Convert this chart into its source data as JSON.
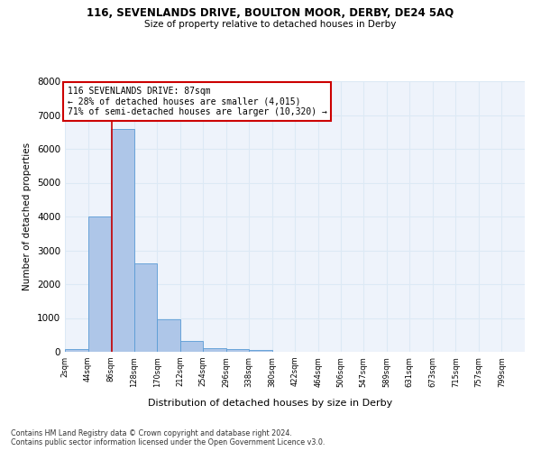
{
  "title": "116, SEVENLANDS DRIVE, BOULTON MOOR, DERBY, DE24 5AQ",
  "subtitle": "Size of property relative to detached houses in Derby",
  "xlabel": "Distribution of detached houses by size in Derby",
  "ylabel": "Number of detached properties",
  "footer_line1": "Contains HM Land Registry data © Crown copyright and database right 2024.",
  "footer_line2": "Contains public sector information licensed under the Open Government Licence v3.0.",
  "bar_edges": [
    2,
    44,
    86,
    128,
    170,
    212,
    254,
    296,
    338,
    380,
    422,
    464,
    506,
    547,
    589,
    631,
    673,
    715,
    757,
    799,
    841
  ],
  "bar_heights": [
    70,
    4000,
    6600,
    2620,
    950,
    330,
    105,
    70,
    55,
    0,
    0,
    0,
    0,
    0,
    0,
    0,
    0,
    0,
    0,
    0
  ],
  "bar_color": "#aec6e8",
  "bar_edge_color": "#5a9bd5",
  "grid_color": "#dce9f5",
  "background_color": "#eef3fb",
  "red_line_x": 87,
  "annotation_text": "116 SEVENLANDS DRIVE: 87sqm\n← 28% of detached houses are smaller (4,015)\n71% of semi-detached houses are larger (10,320) →",
  "annotation_box_color": "#ffffff",
  "annotation_box_edge": "#cc0000",
  "ylim": [
    0,
    8000
  ],
  "xlim": [
    2,
    841
  ]
}
